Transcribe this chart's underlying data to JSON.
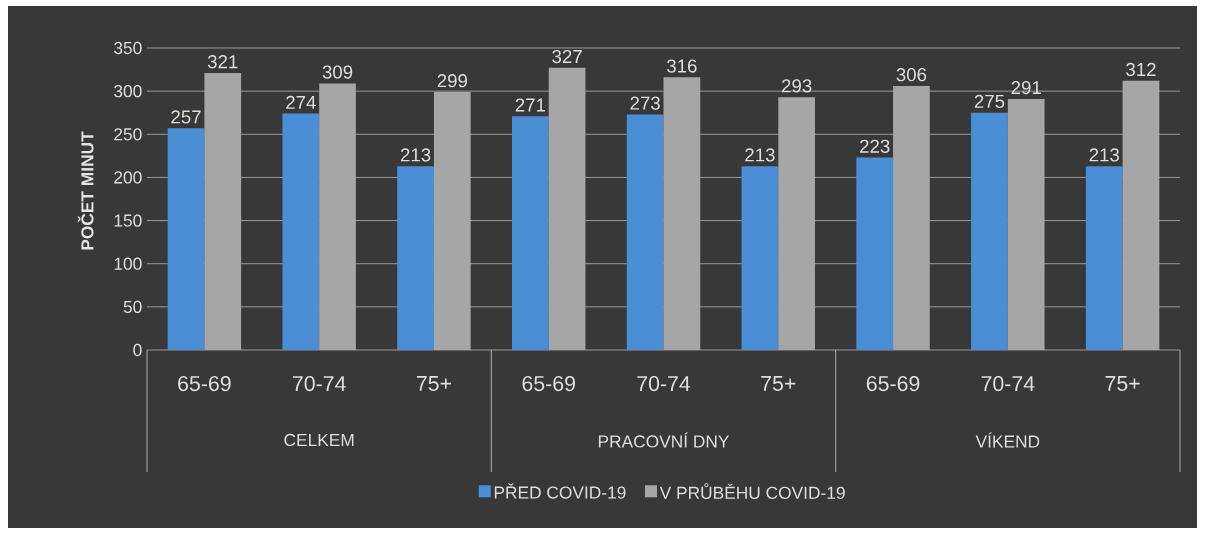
{
  "chart_data": {
    "type": "bar",
    "ylabel": "POČET MINUT",
    "categories": [
      "65-69",
      "70-74",
      "75+",
      "65-69",
      "70-74",
      "75+",
      "65-69",
      "70-74",
      "75+"
    ],
    "annotations": [
      "CELKEM",
      "PRACOVNÍ DNY",
      "VÍKEND"
    ],
    "series": [
      {
        "name": "PŘED COVID-19",
        "color": "#4a8fd6",
        "values": [
          257,
          274,
          213,
          271,
          273,
          213,
          223,
          275,
          213
        ]
      },
      {
        "name": "V PRŮBĚHU COVID-19",
        "color": "#a6a6a6",
        "values": [
          321,
          309,
          299,
          327,
          316,
          293,
          306,
          291,
          312
        ]
      }
    ],
    "ylim": [
      0,
      350
    ],
    "yticks": [
      0,
      50,
      100,
      150,
      200,
      250,
      300,
      350
    ],
    "grid": "y",
    "legend": "bottom",
    "data_labels": true
  }
}
